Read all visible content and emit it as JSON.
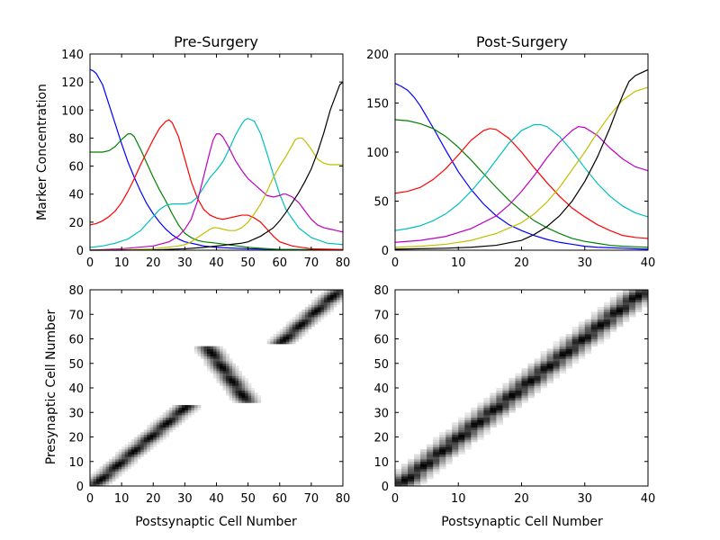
{
  "chart_data": [
    {
      "type": "line",
      "title": "Pre-Surgery",
      "xlabel": "",
      "ylabel": "Marker Concentration",
      "xlim": [
        0,
        80
      ],
      "ylim": [
        0,
        140
      ],
      "xticks": [
        "0",
        "10",
        "20",
        "30",
        "40",
        "50",
        "60",
        "70",
        "80"
      ],
      "yticks": [
        "0",
        "20",
        "40",
        "60",
        "80",
        "100",
        "120",
        "140"
      ],
      "series": [
        {
          "color": "#0000ff",
          "x": [
            0,
            1,
            2,
            4,
            6,
            8,
            10,
            12,
            14,
            16,
            18,
            20,
            22,
            24,
            26,
            28,
            30,
            32,
            34,
            36,
            38,
            40,
            45,
            50,
            55,
            60,
            70,
            80
          ],
          "y": [
            129,
            128,
            126,
            118,
            104,
            90,
            76,
            63,
            52,
            42,
            33,
            26,
            20,
            15,
            11,
            8,
            6,
            5,
            4,
            3,
            2.5,
            2,
            1.5,
            1,
            0.8,
            0.5,
            0.3,
            0.2
          ]
        },
        {
          "color": "#008000",
          "x": [
            0,
            2,
            4,
            6,
            8,
            10,
            12,
            13,
            14,
            16,
            18,
            20,
            22,
            24,
            26,
            28,
            30,
            32,
            34,
            36,
            40,
            45,
            50,
            55,
            60,
            70,
            80
          ],
          "y": [
            70,
            70,
            70,
            71,
            74,
            79,
            83,
            83,
            81,
            72,
            62,
            52,
            43,
            35,
            26,
            18,
            12,
            9,
            7,
            6,
            5,
            3.5,
            2,
            1.2,
            0.6,
            0.3,
            0.1
          ]
        },
        {
          "color": "#ff0000",
          "x": [
            0,
            2,
            4,
            6,
            8,
            10,
            12,
            14,
            16,
            18,
            20,
            22,
            24,
            25,
            26,
            28,
            30,
            32,
            34,
            36,
            38,
            40,
            42,
            44,
            46,
            48,
            50,
            52,
            54,
            56,
            58,
            60,
            64,
            70,
            80
          ],
          "y": [
            18,
            19,
            21,
            24,
            28,
            34,
            42,
            51,
            61,
            70,
            79,
            87,
            92,
            93,
            91,
            81,
            65,
            49,
            37,
            29,
            25,
            23,
            22,
            23,
            24,
            25,
            25,
            23,
            20,
            15,
            10,
            6,
            3,
            1,
            0.5
          ]
        },
        {
          "color": "#00bfbf",
          "x": [
            0,
            4,
            8,
            12,
            16,
            18,
            20,
            22,
            24,
            26,
            28,
            30,
            32,
            34,
            36,
            38,
            40,
            42,
            44,
            46,
            48,
            49,
            50,
            52,
            54,
            56,
            58,
            60,
            62,
            66,
            70,
            75,
            80
          ],
          "y": [
            2,
            3,
            5,
            8,
            14,
            19,
            24,
            29,
            32,
            33,
            33,
            33,
            34,
            38,
            45,
            52,
            57,
            63,
            72,
            82,
            90,
            93,
            94,
            92,
            83,
            69,
            54,
            40,
            29,
            16,
            9,
            5,
            4
          ]
        },
        {
          "color": "#bf00bf",
          "x": [
            0,
            10,
            20,
            25,
            28,
            30,
            32,
            34,
            36,
            38,
            39,
            40,
            41,
            42,
            44,
            46,
            48,
            50,
            52,
            54,
            56,
            58,
            60,
            61,
            62,
            64,
            66,
            68,
            70,
            72,
            74,
            76,
            78,
            80
          ],
          "y": [
            0,
            1,
            3,
            6,
            10,
            15,
            22,
            35,
            53,
            71,
            79,
            83,
            83,
            81,
            73,
            64,
            57,
            51,
            47,
            43,
            39,
            38,
            39,
            40,
            40,
            38,
            34,
            28,
            22,
            18,
            16,
            15,
            14,
            13
          ]
        },
        {
          "color": "#bfbf00",
          "x": [
            0,
            10,
            20,
            28,
            30,
            32,
            34,
            36,
            38,
            39,
            40,
            42,
            44,
            46,
            48,
            50,
            52,
            54,
            56,
            58,
            60,
            62,
            64,
            65,
            66,
            67,
            68,
            70,
            72,
            74,
            76,
            78,
            80
          ],
          "y": [
            0,
            0.2,
            1,
            3,
            4,
            6,
            9,
            12,
            15,
            16,
            16,
            15,
            14,
            14,
            16,
            20,
            26,
            33,
            42,
            52,
            60,
            67,
            75,
            79,
            80,
            80,
            78,
            72,
            65,
            62,
            61,
            61,
            61
          ]
        },
        {
          "color": "#000000",
          "x": [
            0,
            10,
            20,
            30,
            36,
            40,
            42,
            44,
            46,
            48,
            50,
            52,
            54,
            56,
            58,
            60,
            62,
            64,
            66,
            68,
            70,
            72,
            74,
            76,
            78,
            79,
            80
          ],
          "y": [
            0,
            0,
            0.2,
            1,
            2,
            3,
            3.5,
            4,
            4.5,
            5,
            6,
            8,
            10,
            13,
            16,
            21,
            27,
            34,
            41,
            49,
            58,
            70,
            84,
            100,
            112,
            118,
            120
          ]
        }
      ]
    },
    {
      "type": "line",
      "title": "Post-Surgery",
      "xlabel": "",
      "ylabel": "",
      "xlim": [
        0,
        40
      ],
      "ylim": [
        0,
        200
      ],
      "xticks": [
        "0",
        "10",
        "20",
        "30",
        "40"
      ],
      "yticks": [
        "0",
        "50",
        "100",
        "150",
        "200"
      ],
      "series": [
        {
          "color": "#0000ff",
          "x": [
            0,
            1,
            2,
            3,
            4,
            6,
            8,
            10,
            12,
            14,
            16,
            18,
            20,
            22,
            24,
            26,
            28,
            30,
            32,
            34,
            36,
            38,
            40
          ],
          "y": [
            170,
            167,
            163,
            156,
            147,
            125,
            102,
            80,
            62,
            47,
            35,
            26,
            20,
            15,
            11,
            8,
            6,
            4,
            3,
            2.5,
            2,
            1.5,
            1
          ]
        },
        {
          "color": "#008000",
          "x": [
            0,
            2,
            4,
            6,
            8,
            10,
            12,
            14,
            16,
            18,
            20,
            22,
            24,
            26,
            28,
            30,
            32,
            34,
            36,
            38,
            40
          ],
          "y": [
            133,
            132,
            129,
            124,
            116,
            105,
            92,
            78,
            64,
            51,
            40,
            30,
            23,
            17,
            12,
            9,
            7,
            5,
            4,
            3.5,
            3
          ]
        },
        {
          "color": "#ff0000",
          "x": [
            0,
            2,
            4,
            6,
            8,
            10,
            12,
            14,
            15,
            16,
            18,
            20,
            22,
            24,
            26,
            28,
            30,
            32,
            34,
            36,
            38,
            40
          ],
          "y": [
            58,
            60,
            64,
            72,
            83,
            97,
            112,
            122,
            124,
            123,
            114,
            100,
            84,
            69,
            55,
            43,
            34,
            26,
            20,
            15,
            13,
            12
          ]
        },
        {
          "color": "#00bfbf",
          "x": [
            0,
            2,
            4,
            6,
            8,
            10,
            12,
            14,
            16,
            18,
            20,
            22,
            23,
            24,
            26,
            28,
            30,
            32,
            34,
            36,
            38,
            40
          ],
          "y": [
            20,
            22,
            25,
            30,
            37,
            47,
            60,
            75,
            92,
            109,
            122,
            128,
            128,
            126,
            116,
            101,
            84,
            68,
            55,
            45,
            38,
            34
          ]
        },
        {
          "color": "#bf00bf",
          "x": [
            0,
            4,
            8,
            12,
            16,
            18,
            20,
            22,
            24,
            26,
            28,
            29,
            30,
            32,
            34,
            36,
            38,
            40
          ],
          "y": [
            8,
            10,
            14,
            22,
            35,
            46,
            60,
            76,
            94,
            110,
            122,
            126,
            125,
            117,
            104,
            93,
            85,
            81
          ]
        },
        {
          "color": "#bfbf00",
          "x": [
            0,
            4,
            8,
            12,
            16,
            20,
            22,
            24,
            26,
            28,
            30,
            32,
            34,
            36,
            38,
            40
          ],
          "y": [
            3,
            4,
            6,
            10,
            17,
            28,
            37,
            49,
            64,
            82,
            100,
            120,
            138,
            153,
            162,
            166
          ]
        },
        {
          "color": "#000000",
          "x": [
            0,
            8,
            12,
            16,
            20,
            22,
            24,
            26,
            28,
            30,
            32,
            34,
            35,
            36,
            37,
            38,
            39,
            40
          ],
          "y": [
            1,
            2,
            3,
            5,
            10,
            16,
            24,
            35,
            50,
            70,
            95,
            125,
            142,
            158,
            172,
            178,
            181,
            184
          ]
        }
      ]
    },
    {
      "type": "heatmap",
      "title": "",
      "xlabel": "Postsynaptic Cell Number",
      "ylabel": "Presynaptic Cell Number",
      "xlim": [
        0,
        80
      ],
      "ylim": [
        0,
        80
      ],
      "xticks": [
        "0",
        "10",
        "20",
        "30",
        "40",
        "50",
        "60",
        "70",
        "80"
      ],
      "yticks": [
        "0",
        "10",
        "20",
        "30",
        "40",
        "50",
        "60",
        "70",
        "80"
      ],
      "colormap": "white-to-black",
      "rows": 80,
      "cols": 80,
      "segments": [
        {
          "pre_from": 0,
          "pre_to": 33,
          "post_from": 1,
          "post_to": 31
        },
        {
          "pre_from": 34,
          "pre_to": 57,
          "post_from": 50,
          "post_to": 37
        },
        {
          "pre_from": 58,
          "pre_to": 80,
          "post_from": 60,
          "post_to": 79
        }
      ]
    },
    {
      "type": "heatmap",
      "title": "",
      "xlabel": "Postsynaptic Cell Number",
      "ylabel": "",
      "xlim": [
        0,
        40
      ],
      "ylim": [
        0,
        80
      ],
      "xticks": [
        "0",
        "10",
        "20",
        "30",
        "40"
      ],
      "yticks": [
        "0",
        "10",
        "20",
        "30",
        "40",
        "50",
        "60",
        "70",
        "80"
      ],
      "colormap": "white-to-black",
      "rows": 80,
      "cols": 40,
      "segments": [
        {
          "pre_from": 0,
          "pre_to": 80,
          "post_from": 0.5,
          "post_to": 39.5
        }
      ]
    }
  ]
}
